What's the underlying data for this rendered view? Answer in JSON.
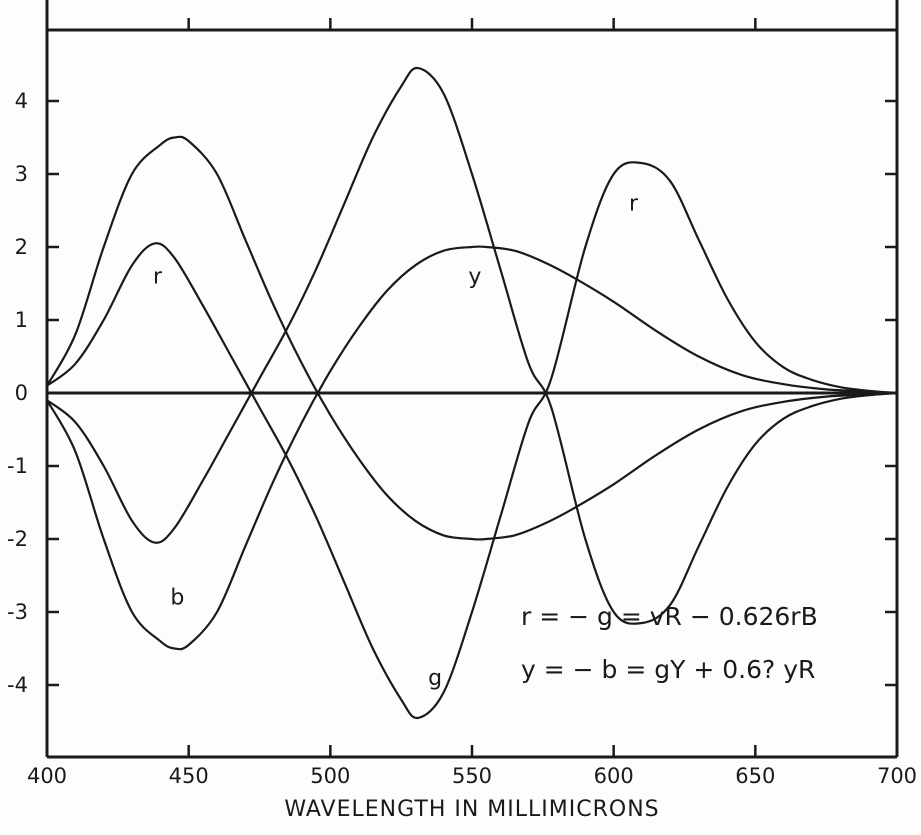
{
  "chart_data": {
    "type": "line",
    "title": "",
    "xlabel": "WAVELENGTH IN MILLIMICRONS",
    "ylabel": "",
    "xlim": [
      400,
      700
    ],
    "ylim": [
      -5,
      5
    ],
    "x_ticks": [
      400,
      450,
      500,
      550,
      600,
      650,
      700
    ],
    "x_tick_labels": [
      "400",
      "450",
      "500",
      "550",
      "600",
      "650",
      "700"
    ],
    "y_ticks": [
      4,
      3,
      2,
      1,
      0,
      -1,
      -2,
      -3,
      -4
    ],
    "y_tick_labels": [
      "4",
      "3",
      "2",
      "1",
      "0",
      "-1",
      "-2",
      "-3",
      "-4"
    ],
    "grid": false,
    "legend": "none",
    "series": [
      {
        "name": "r",
        "x": [
          400,
          410,
          420,
          430,
          438,
          445,
          455,
          465,
          475,
          485,
          495,
          505,
          515,
          525,
          531,
          540,
          550,
          560,
          570,
          578,
          590,
          600,
          610,
          620,
          630,
          640,
          650,
          660,
          670,
          680,
          690,
          700
        ],
        "y": [
          0.1,
          0.4,
          1.0,
          1.75,
          2.05,
          1.85,
          1.2,
          0.5,
          -0.2,
          -0.9,
          -1.7,
          -2.6,
          -3.5,
          -4.2,
          -4.45,
          -4.1,
          -3.0,
          -1.7,
          -0.4,
          0.2,
          2.0,
          3.0,
          3.15,
          2.9,
          2.1,
          1.3,
          0.7,
          0.35,
          0.18,
          0.08,
          0.03,
          0.0
        ]
      },
      {
        "name": "g",
        "x": [
          400,
          410,
          420,
          430,
          438,
          445,
          455,
          465,
          475,
          485,
          495,
          505,
          515,
          525,
          531,
          540,
          550,
          560,
          570,
          578,
          590,
          600,
          610,
          620,
          630,
          640,
          650,
          660,
          670,
          680,
          690,
          700
        ],
        "y": [
          -0.1,
          -0.4,
          -1.0,
          -1.75,
          -2.05,
          -1.85,
          -1.2,
          -0.5,
          0.2,
          0.9,
          1.7,
          2.6,
          3.5,
          4.2,
          4.45,
          4.1,
          3.0,
          1.7,
          0.4,
          -0.2,
          -2.0,
          -3.0,
          -3.15,
          -2.9,
          -2.1,
          -1.3,
          -0.7,
          -0.35,
          -0.18,
          -0.08,
          -0.03,
          0.0
        ]
      },
      {
        "name": "y",
        "x": [
          400,
          410,
          420,
          430,
          440,
          445,
          450,
          460,
          470,
          480,
          490,
          500,
          510,
          520,
          530,
          540,
          550,
          555,
          565,
          575,
          585,
          600,
          615,
          630,
          645,
          660,
          675,
          690,
          700
        ],
        "y": [
          -0.1,
          -0.8,
          -2.0,
          -3.0,
          -3.4,
          -3.5,
          -3.45,
          -3.0,
          -2.1,
          -1.2,
          -0.4,
          0.3,
          0.9,
          1.4,
          1.75,
          1.95,
          2.0,
          2.0,
          1.95,
          1.8,
          1.6,
          1.25,
          0.85,
          0.5,
          0.25,
          0.12,
          0.05,
          0.02,
          0.0
        ]
      },
      {
        "name": "b",
        "x": [
          400,
          410,
          420,
          430,
          440,
          445,
          450,
          460,
          470,
          480,
          490,
          500,
          510,
          520,
          530,
          540,
          550,
          555,
          565,
          575,
          585,
          600,
          615,
          630,
          645,
          660,
          675,
          690,
          700
        ],
        "y": [
          0.1,
          0.8,
          2.0,
          3.0,
          3.4,
          3.5,
          3.45,
          3.0,
          2.1,
          1.2,
          0.4,
          -0.3,
          -0.9,
          -1.4,
          -1.75,
          -1.95,
          -2.0,
          -2.0,
          -1.95,
          -1.8,
          -1.6,
          -1.25,
          -0.85,
          -0.5,
          -0.25,
          -0.12,
          -0.05,
          -0.02,
          0.0
        ]
      }
    ],
    "curve_labels": [
      {
        "text": "r",
        "x": 439,
        "y": 1.5
      },
      {
        "text": "r",
        "x": 607,
        "y": 2.5
      },
      {
        "text": "y",
        "x": 551,
        "y": 1.5
      },
      {
        "text": "b",
        "x": 446,
        "y": -2.9
      },
      {
        "text": "g",
        "x": 537,
        "y": -4.0
      }
    ],
    "annotations": [
      {
        "id": "eq1",
        "text": "r = − g = vR − 0.626rB"
      },
      {
        "id": "eq2",
        "text": "y = − b = gY + 0.6? yR"
      }
    ]
  }
}
